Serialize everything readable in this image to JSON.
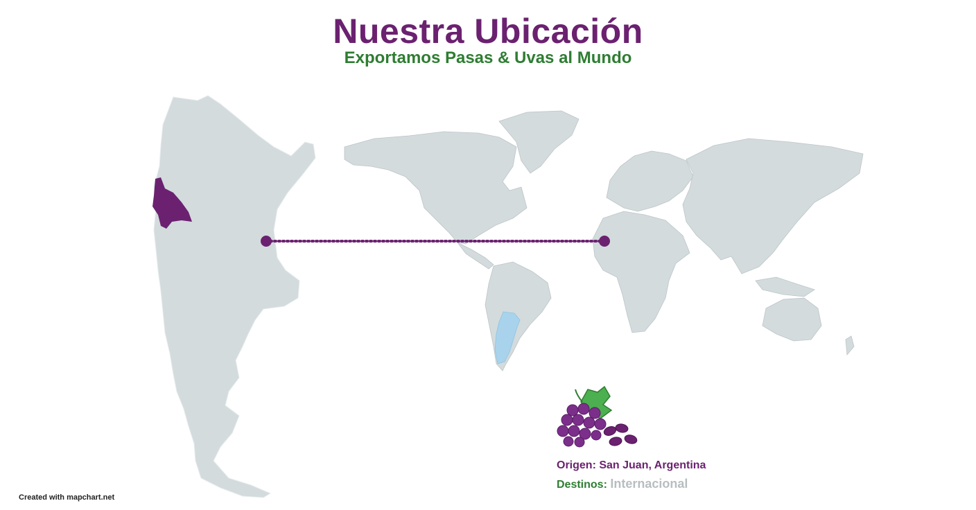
{
  "header": {
    "title": "Nuestra Ubicación",
    "subtitle": "Exportamos Pasas & Uvas al Mundo"
  },
  "legend": {
    "origin": "Origen: San Juan, Argentina",
    "destinations_label": "Destinos:",
    "destinations_value": "Internacional"
  },
  "credit": "Created with mapchart.net",
  "map": {
    "origin_region": "San Juan",
    "origin_country": "Argentina",
    "icon": "grapes-icon"
  },
  "colors": {
    "title": "#6b2170",
    "subtitle": "#2e7d32",
    "land": "#d3dbdd",
    "highlight_region": "#6b2170",
    "highlight_country": "#a9d3ec",
    "route": "#6b2170",
    "muted_text": "#b8bec0"
  }
}
